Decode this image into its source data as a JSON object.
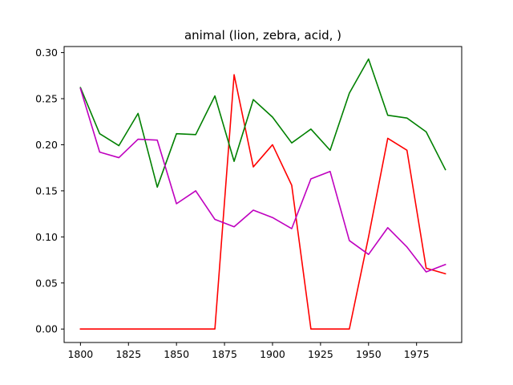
{
  "chart_data": {
    "type": "line",
    "title": "animal (lion, zebra, acid, )",
    "xlabel": "",
    "ylabel": "",
    "x": [
      1800,
      1810,
      1820,
      1830,
      1840,
      1850,
      1860,
      1870,
      1880,
      1890,
      1900,
      1910,
      1920,
      1930,
      1940,
      1950,
      1960,
      1970,
      1980,
      1990
    ],
    "xlim": [
      1791.5,
      1998.5
    ],
    "ylim": [
      -0.0146,
      0.3066
    ],
    "xticks": [
      1800,
      1825,
      1850,
      1875,
      1900,
      1925,
      1950,
      1975
    ],
    "xtick_labels": [
      "1800",
      "1825",
      "1850",
      "1875",
      "1900",
      "1925",
      "1950",
      "1975"
    ],
    "yticks": [
      0.0,
      0.05,
      0.1,
      0.15,
      0.2,
      0.25,
      0.3
    ],
    "ytick_labels": [
      "0.00",
      "0.05",
      "0.10",
      "0.15",
      "0.20",
      "0.25",
      "0.30"
    ],
    "grid": false,
    "series": [
      {
        "color": "#ff0000",
        "values": [
          0.0,
          0.0,
          0.0,
          0.0,
          0.0,
          0.0,
          0.0,
          0.0,
          0.276,
          0.176,
          0.2,
          0.156,
          0.0,
          0.0,
          0.0,
          0.1,
          0.207,
          0.194,
          0.066,
          0.06
        ]
      },
      {
        "color": "#008000",
        "values": [
          0.262,
          0.212,
          0.199,
          0.234,
          0.154,
          0.212,
          0.211,
          0.253,
          0.182,
          0.249,
          0.23,
          0.202,
          0.217,
          0.194,
          0.256,
          0.293,
          0.232,
          0.229,
          0.214,
          0.173
        ]
      },
      {
        "color": "#bf00bf",
        "values": [
          0.261,
          0.192,
          0.186,
          0.206,
          0.205,
          0.136,
          0.15,
          0.119,
          0.111,
          0.129,
          0.121,
          0.109,
          0.163,
          0.171,
          0.096,
          0.081,
          0.11,
          0.089,
          0.062,
          0.07
        ]
      }
    ]
  }
}
